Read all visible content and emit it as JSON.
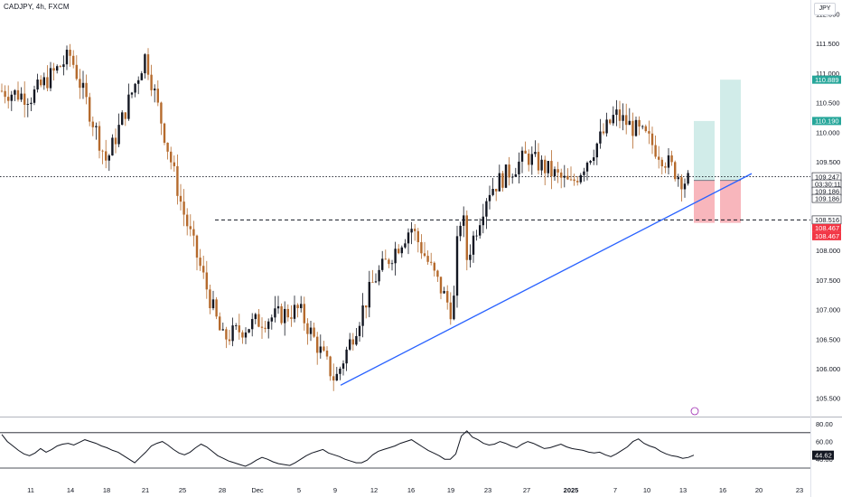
{
  "header": {
    "symbol_line": "CADJPY, 4h, FXCM",
    "currency": "JPY"
  },
  "colors": {
    "up_candle": "#131722",
    "down_candle": "#b56a2d",
    "trendline": "#2962ff",
    "tp_zone": "#b2dfdb",
    "sl_zone": "#f7a9b0",
    "tp_tag": "#26a69a",
    "sl_tag": "#f23645",
    "price_tag": "#131722",
    "rsi_line": "#131722",
    "grid": "#131722"
  },
  "chart_data": {
    "type": "candlestick",
    "symbol": "CADJPY",
    "timeframe": "4h",
    "source": "FXCM",
    "price_axis": {
      "ticks": [
        "112.000",
        "111.500",
        "111.000",
        "110.500",
        "110.000",
        "109.500",
        "109.000",
        "108.500",
        "108.000",
        "107.500",
        "107.000",
        "106.500",
        "106.000",
        "105.500"
      ],
      "ylim": [
        105.3,
        112.2
      ]
    },
    "time_axis": {
      "ticks": [
        "11",
        "14",
        "18",
        "21",
        "25",
        "28",
        "Dec",
        "5",
        "9",
        "12",
        "16",
        "19",
        "23",
        "27",
        "2025",
        "7",
        "10",
        "13",
        "16",
        "20",
        "23"
      ],
      "bold": [
        "2025"
      ]
    },
    "key_closes": [
      {
        "x": "11",
        "y": 110.6
      },
      {
        "x": "14",
        "y": 111.3
      },
      {
        "x": "18",
        "y": 109.5
      },
      {
        "x": "21",
        "y": 111.3
      },
      {
        "x": "25",
        "y": 108.7
      },
      {
        "x": "28",
        "y": 106.5
      },
      {
        "x": "Dec",
        "y": 106.8
      },
      {
        "x": "5",
        "y": 107.0
      },
      {
        "x": "9",
        "y": 105.8
      },
      {
        "x": "12",
        "y": 107.5
      },
      {
        "x": "16",
        "y": 108.4
      },
      {
        "x": "19",
        "y": 107.0
      },
      {
        "x": "23",
        "y": 109.0
      },
      {
        "x": "27",
        "y": 109.6
      },
      {
        "x": "2025",
        "y": 109.1
      },
      {
        "x": "7",
        "y": 110.3
      },
      {
        "x": "10",
        "y": 109.9
      },
      {
        "x": "13",
        "y": 109.18
      }
    ],
    "lines": {
      "current_price": 109.247,
      "support_level": 108.516,
      "trendline_from": {
        "x": "9",
        "y": 105.72
      },
      "trendline_to": {
        "x": "20",
        "y": 109.3
      }
    },
    "position": {
      "entry": 109.186,
      "take_profit_1": 110.19,
      "take_profit_2": 110.889,
      "stop_loss": 108.467
    },
    "price_tags": [
      {
        "value": "110.889",
        "style": "tp"
      },
      {
        "value": "110.190",
        "style": "tp"
      },
      {
        "value": "109.247",
        "style": "price"
      },
      {
        "value": "03:30:11",
        "style": "price"
      },
      {
        "value": "109.186",
        "style": "price"
      },
      {
        "value": "109.186",
        "style": "price"
      },
      {
        "value": "108.516",
        "style": "price"
      },
      {
        "value": "108.467",
        "style": "sl"
      },
      {
        "value": "108.467",
        "style": "sl"
      }
    ],
    "rsi": {
      "ticks": [
        "80.00",
        "60.00",
        "40.00"
      ],
      "ylim": [
        30,
        80
      ],
      "upper_band": 70,
      "lower_band": 30,
      "current": "44.62",
      "values": [
        68,
        60,
        55,
        50,
        46,
        44,
        47,
        52,
        48,
        51,
        55,
        57,
        58,
        56,
        59,
        62,
        60,
        58,
        55,
        53,
        50,
        48,
        44,
        40,
        36,
        42,
        48,
        55,
        58,
        60,
        56,
        51,
        47,
        45,
        48,
        53,
        57,
        54,
        49,
        44,
        41,
        38,
        36,
        34,
        32,
        35,
        39,
        42,
        40,
        37,
        35,
        34,
        33,
        36,
        40,
        44,
        47,
        49,
        51,
        47,
        45,
        43,
        40,
        38,
        36,
        36,
        39,
        45,
        49,
        51,
        53,
        55,
        58,
        60,
        62,
        58,
        54,
        50,
        47,
        44,
        40,
        40,
        46,
        66,
        72,
        65,
        62,
        58,
        56,
        57,
        60,
        58,
        55,
        53,
        57,
        60,
        58,
        55,
        52,
        53,
        55,
        57,
        54,
        52,
        51,
        50,
        48,
        47,
        48,
        45,
        43,
        46,
        50,
        54,
        60,
        63,
        58,
        55,
        53,
        49,
        46,
        44,
        43,
        41,
        42,
        44.62
      ]
    }
  }
}
